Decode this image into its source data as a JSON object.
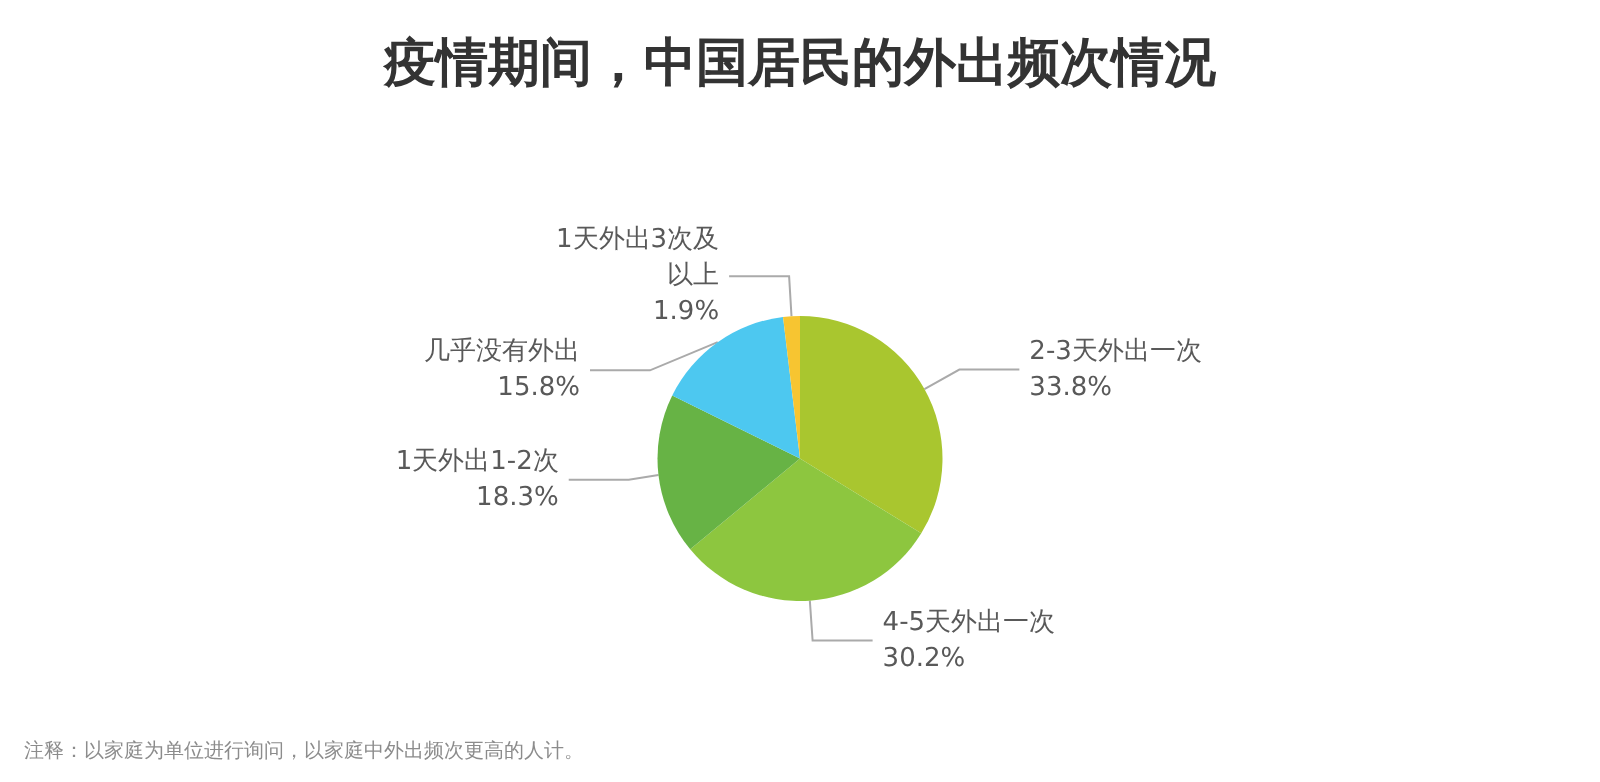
{
  "chart_data": {
    "type": "pie",
    "title": "疫情期间，中国居民的外出频次情况",
    "categories": [
      "2-3天外出一次",
      "4-5天外出一次",
      "1天外出1-2次",
      "几乎没有外出",
      "1天外出3次及以上"
    ],
    "values": [
      33.8,
      30.2,
      18.3,
      15.8,
      1.9
    ],
    "colors": [
      "#a9c62f",
      "#8dc63f",
      "#67b345",
      "#4dc8f0",
      "#f7c531"
    ],
    "value_labels": [
      "33.8%",
      "30.2%",
      "18.3%",
      "15.8%",
      "1.9%"
    ],
    "legend": false,
    "annotations": [
      "注释：以家庭为单位进行询问，以家庭中外出频次更高的人计。"
    ]
  }
}
